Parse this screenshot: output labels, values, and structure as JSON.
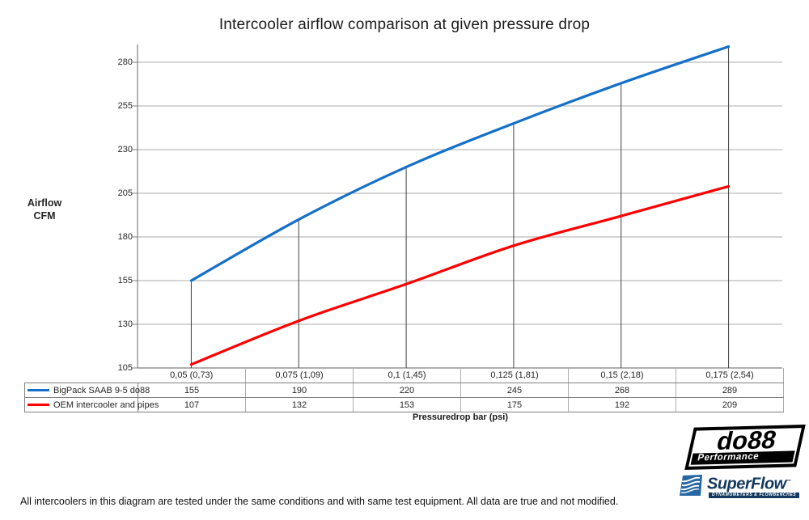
{
  "title": "Intercooler airflow comparison at given pressure drop",
  "chart_data": {
    "type": "line",
    "title": "Intercooler airflow comparison at given pressure drop",
    "xlabel": "Pressuredrop bar (psi)",
    "ylabel": "Airflow CFM",
    "ylabel_line1": "Airflow",
    "ylabel_line2": "CFM",
    "categories": [
      "0,05 (0,73)",
      "0,075 (1,09)",
      "0,1 (1,45)",
      "0,125 (1,81)",
      "0,15 (2,18)",
      "0,175 (2,54)"
    ],
    "series": [
      {
        "name": "BigPack SAAB 9-5 do88",
        "color": "#1470c8",
        "values": [
          155,
          190,
          220,
          245,
          268,
          289
        ]
      },
      {
        "name": "OEM intercooler and pipes",
        "color": "#fe0000",
        "values": [
          107,
          132,
          153,
          175,
          192,
          209
        ]
      }
    ],
    "yticks": [
      105,
      130,
      155,
      180,
      205,
      230,
      255,
      280
    ],
    "ylim": [
      105,
      290
    ],
    "grid": true,
    "drop_lines": true,
    "legend_position": "data-table-left",
    "gridline_color": "#ababab",
    "axis_color": "#7f7f7f",
    "drop_line_color": "#404040"
  },
  "footer": {
    "disclaimer": "All intercoolers in this diagram are tested under the same conditions and with same test equipment. All data are true and not modified."
  },
  "logos": {
    "do88": {
      "text": "do88",
      "sub": "Performance"
    },
    "superflow": {
      "text": "SuperFlow",
      "reg_mark": "™",
      "sub": "DYNAMOMETERS & FLOWBENCHES"
    }
  }
}
